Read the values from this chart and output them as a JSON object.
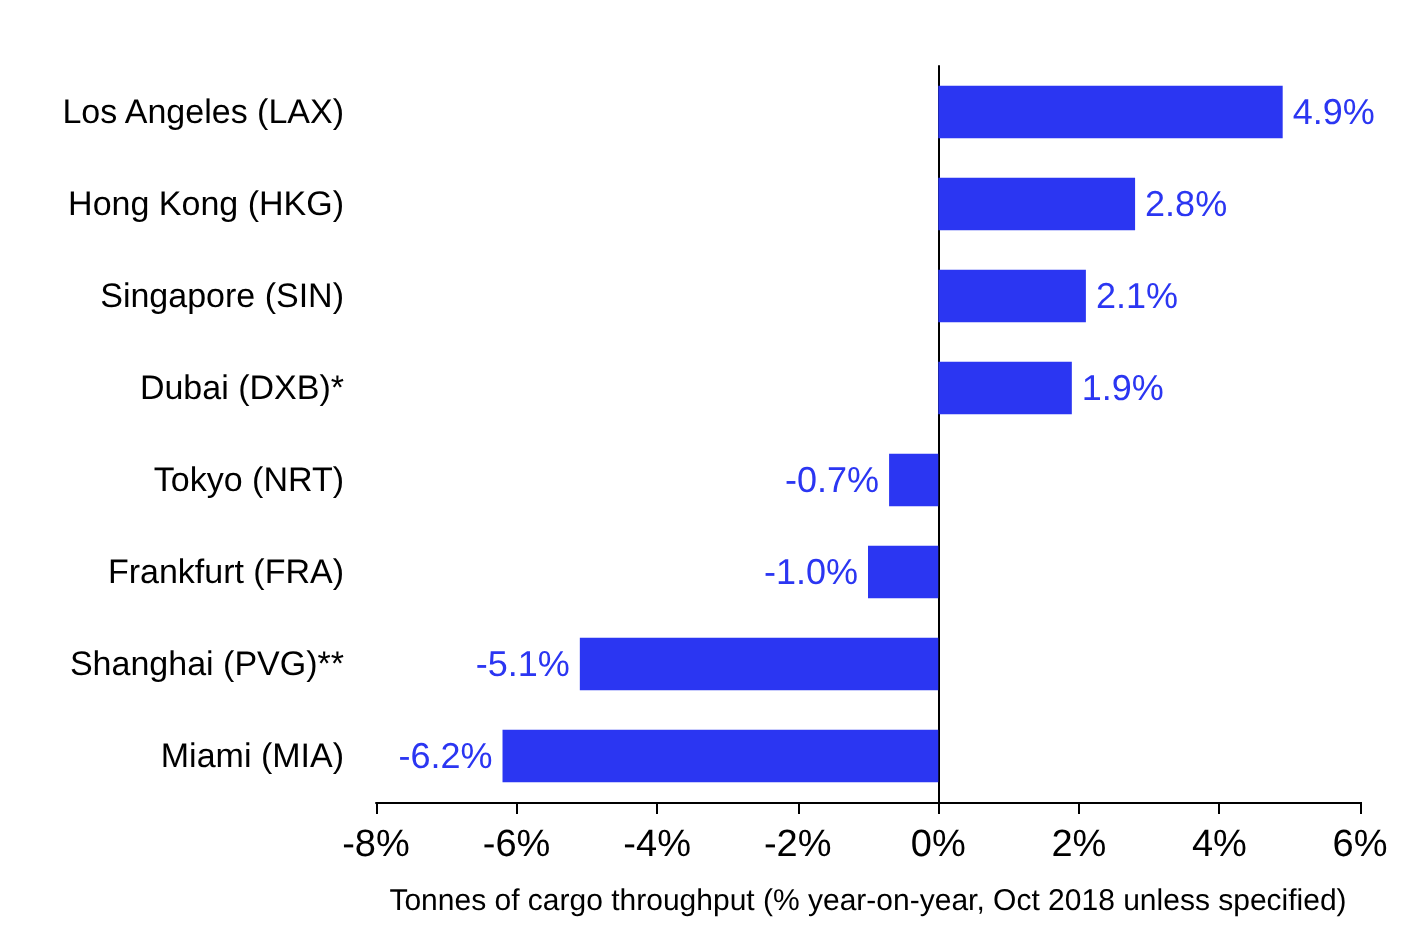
{
  "chart_data": {
    "type": "bar",
    "orientation": "horizontal",
    "xlabel": "Tonnes of cargo throughput (% year-on-year, Oct 2018 unless specified)",
    "categories": [
      "Los Angeles (LAX)",
      "Hong Kong (HKG)",
      "Singapore (SIN)",
      "Dubai (DXB)*",
      "Tokyo (NRT)",
      "Frankfurt (FRA)",
      "Shanghai (PVG)**",
      "Miami (MIA)"
    ],
    "values": [
      4.9,
      2.8,
      2.1,
      1.9,
      -0.7,
      -1.0,
      -5.1,
      -6.2
    ],
    "value_labels": [
      "4.9%",
      "2.8%",
      "2.1%",
      "1.9%",
      "-0.7%",
      "-1.0%",
      "-5.1%",
      "-6.2%"
    ],
    "color": "#2b36f2",
    "xlim": [
      -8,
      6
    ],
    "xticks": [
      {
        "value": -8,
        "label": "-8%"
      },
      {
        "value": -6,
        "label": "-6%"
      },
      {
        "value": -4,
        "label": "-4%"
      },
      {
        "value": -2,
        "label": "-2%"
      },
      {
        "value": 0,
        "label": "0%"
      },
      {
        "value": 2,
        "label": "2%"
      },
      {
        "value": 4,
        "label": "4%"
      },
      {
        "value": 6,
        "label": "6%"
      }
    ]
  }
}
